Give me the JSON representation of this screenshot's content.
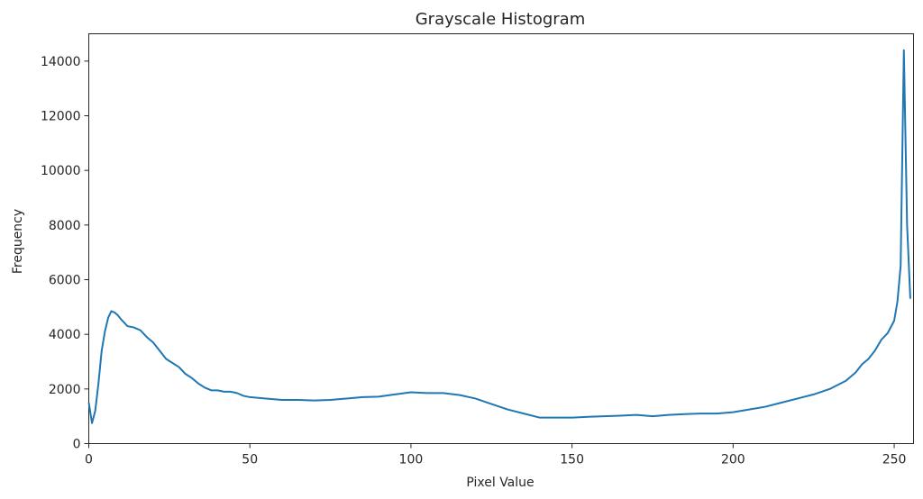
{
  "chart_data": {
    "type": "line",
    "title": "Grayscale Histogram",
    "xlabel": "Pixel Value",
    "ylabel": "Frequency",
    "xlim": [
      0,
      256
    ],
    "ylim": [
      0,
      15000
    ],
    "xticks": [
      0,
      50,
      100,
      150,
      200,
      250
    ],
    "yticks": [
      0,
      2000,
      4000,
      6000,
      8000,
      10000,
      12000,
      14000
    ],
    "grid": false,
    "series": [
      {
        "color": "#1f77b4",
        "x": [
          0,
          1,
          2,
          3,
          4,
          5,
          6,
          7,
          8,
          9,
          10,
          12,
          14,
          16,
          18,
          20,
          22,
          24,
          26,
          28,
          30,
          32,
          34,
          36,
          38,
          40,
          42,
          44,
          46,
          48,
          50,
          55,
          60,
          65,
          70,
          75,
          80,
          85,
          90,
          95,
          100,
          105,
          110,
          115,
          120,
          125,
          130,
          135,
          140,
          145,
          150,
          155,
          160,
          165,
          170,
          175,
          180,
          185,
          190,
          195,
          200,
          205,
          210,
          215,
          220,
          225,
          230,
          235,
          238,
          240,
          242,
          244,
          246,
          248,
          250,
          251,
          252,
          253,
          254,
          255
        ],
        "y": [
          1500,
          750,
          1200,
          2200,
          3400,
          4100,
          4600,
          4850,
          4800,
          4700,
          4550,
          4300,
          4250,
          4150,
          3900,
          3700,
          3400,
          3100,
          2950,
          2800,
          2550,
          2400,
          2200,
          2050,
          1950,
          1950,
          1900,
          1900,
          1850,
          1750,
          1700,
          1650,
          1600,
          1600,
          1580,
          1600,
          1650,
          1700,
          1720,
          1800,
          1880,
          1850,
          1850,
          1780,
          1650,
          1450,
          1250,
          1100,
          950,
          950,
          950,
          980,
          1000,
          1020,
          1050,
          1000,
          1050,
          1080,
          1100,
          1100,
          1150,
          1250,
          1350,
          1500,
          1650,
          1800,
          2000,
          2300,
          2600,
          2900,
          3100,
          3400,
          3800,
          4050,
          4500,
          5200,
          6500,
          14400,
          8000,
          5300
        ]
      }
    ]
  }
}
